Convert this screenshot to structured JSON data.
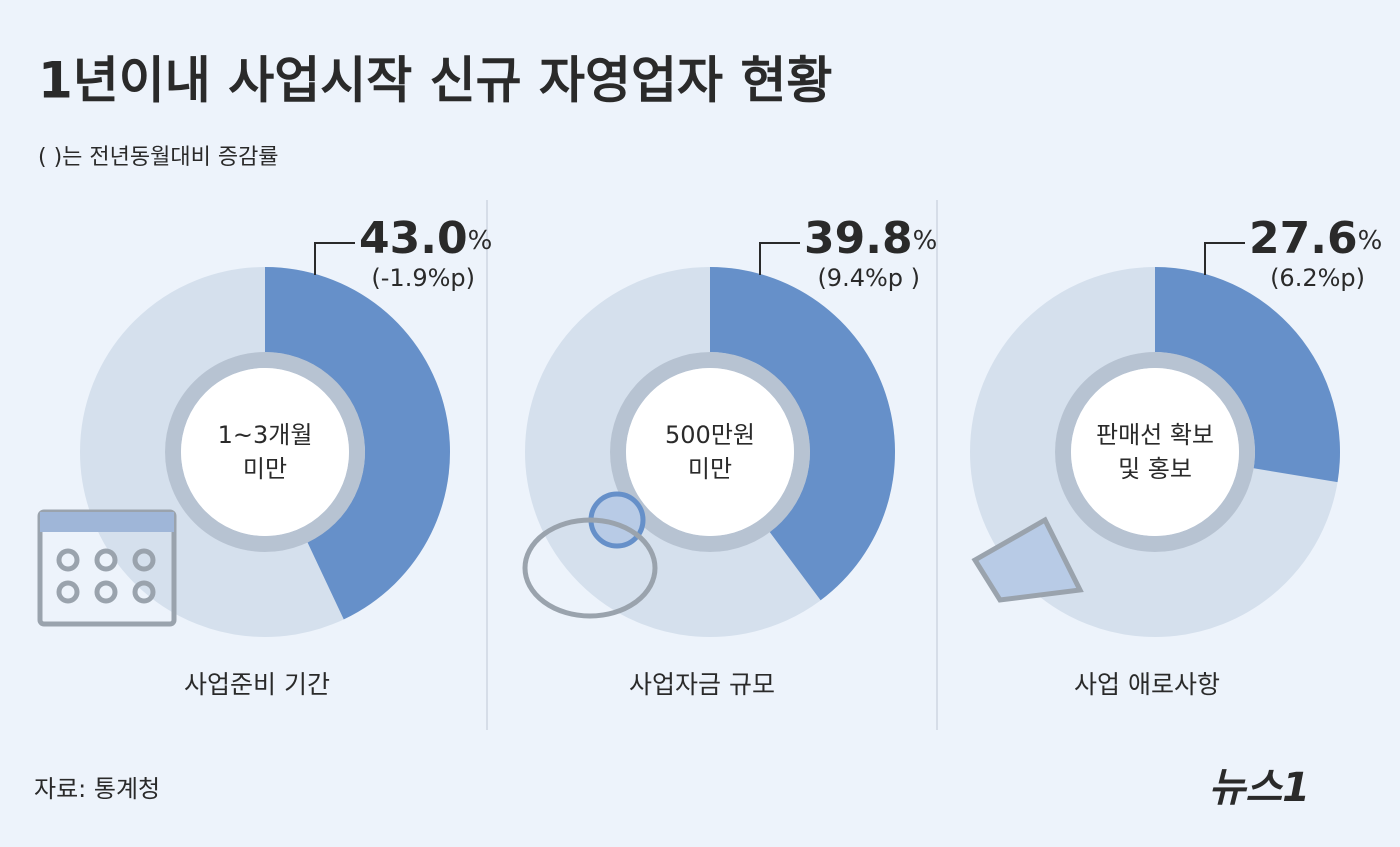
{
  "title": "1년이내 사업시작 신규 자영업자 현황",
  "subtitle": "( )는 전년동월대비 증감률",
  "source": "자료: 통계청",
  "logo": "뉴스1",
  "chart_data": [
    {
      "type": "pie",
      "title": "사업준비 기간",
      "center_label": [
        "1~3개월",
        "미만"
      ],
      "values": [
        43.0
      ],
      "value_labels": [
        "43.0"
      ],
      "unit": "%",
      "change_label": "(-1.9%p)",
      "color": "#6690c9",
      "rest_color": "#d5e0ed"
    },
    {
      "type": "pie",
      "title": "사업자금 규모",
      "center_label": [
        "500만원",
        "미만"
      ],
      "values": [
        39.8
      ],
      "value_labels": [
        "39.8"
      ],
      "unit": "%",
      "change_label": "(9.4%p )",
      "color": "#6690c9",
      "rest_color": "#d5e0ed"
    },
    {
      "type": "pie",
      "title": "사업 애로사항",
      "center_label": [
        "판매선 확보",
        "및 홍보"
      ],
      "values": [
        27.6
      ],
      "value_labels": [
        "27.6"
      ],
      "unit": "%",
      "change_label": "(6.2%p)",
      "color": "#6690c9",
      "rest_color": "#d5e0ed"
    }
  ]
}
